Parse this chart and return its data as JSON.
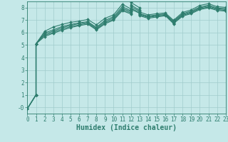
{
  "xlabel": "Humidex (Indice chaleur)",
  "bg_color": "#c5e8e8",
  "grid_color": "#a0cccc",
  "line_color": "#2e7d6e",
  "xlim": [
    0,
    23
  ],
  "ylim": [
    -0.5,
    8.5
  ],
  "yticks": [
    0,
    1,
    2,
    3,
    4,
    5,
    6,
    7,
    8
  ],
  "ytick_labels": [
    "-0",
    "1",
    "2",
    "3",
    "4",
    "5",
    "6",
    "7",
    "8"
  ],
  "xticks": [
    0,
    1,
    2,
    3,
    4,
    5,
    6,
    7,
    8,
    9,
    10,
    11,
    12,
    13,
    14,
    15,
    16,
    17,
    18,
    19,
    20,
    21,
    22,
    23
  ],
  "curves": [
    [
      [
        0,
        -0.1
      ],
      [
        1,
        1.0
      ],
      [
        1,
        5.1
      ],
      [
        2,
        6.1
      ],
      [
        3,
        6.45
      ],
      [
        4,
        6.65
      ],
      [
        5,
        6.82
      ],
      [
        6,
        6.92
      ],
      [
        7,
        7.05
      ],
      [
        8,
        6.62
      ],
      [
        9,
        7.15
      ],
      [
        10,
        7.42
      ],
      [
        11,
        8.28
      ],
      [
        12,
        7.9
      ],
      [
        12,
        8.42
      ],
      [
        13,
        8.0
      ],
      [
        13,
        7.65
      ],
      [
        14,
        7.42
      ],
      [
        15,
        7.52
      ],
      [
        16,
        7.58
      ],
      [
        17,
        6.95
      ],
      [
        17,
        7.02
      ],
      [
        18,
        7.62
      ],
      [
        19,
        7.82
      ],
      [
        20,
        8.18
      ],
      [
        21,
        8.32
      ],
      [
        22,
        8.08
      ],
      [
        23,
        8.02
      ]
    ],
    [
      [
        0,
        -0.1
      ],
      [
        1,
        1.0
      ],
      [
        1,
        5.1
      ],
      [
        2,
        5.98
      ],
      [
        3,
        6.22
      ],
      [
        4,
        6.48
      ],
      [
        5,
        6.65
      ],
      [
        6,
        6.78
      ],
      [
        7,
        6.88
      ],
      [
        8,
        6.42
      ],
      [
        9,
        6.98
      ],
      [
        10,
        7.28
      ],
      [
        11,
        8.08
      ],
      [
        12,
        7.75
      ],
      [
        12,
        8.22
      ],
      [
        13,
        7.8
      ],
      [
        13,
        7.52
      ],
      [
        14,
        7.32
      ],
      [
        15,
        7.42
      ],
      [
        16,
        7.5
      ],
      [
        17,
        6.88
      ],
      [
        17,
        6.95
      ],
      [
        18,
        7.52
      ],
      [
        19,
        7.72
      ],
      [
        20,
        8.05
      ],
      [
        21,
        8.2
      ],
      [
        22,
        7.98
      ],
      [
        23,
        7.92
      ]
    ],
    [
      [
        0,
        -0.1
      ],
      [
        1,
        1.0
      ],
      [
        1,
        5.1
      ],
      [
        2,
        5.88
      ],
      [
        3,
        6.12
      ],
      [
        4,
        6.38
      ],
      [
        5,
        6.58
      ],
      [
        6,
        6.72
      ],
      [
        7,
        6.82
      ],
      [
        8,
        6.35
      ],
      [
        9,
        6.88
      ],
      [
        10,
        7.18
      ],
      [
        11,
        7.95
      ],
      [
        12,
        7.68
      ],
      [
        12,
        8.08
      ],
      [
        13,
        7.72
      ],
      [
        13,
        7.48
      ],
      [
        14,
        7.28
      ],
      [
        15,
        7.38
      ],
      [
        16,
        7.45
      ],
      [
        17,
        6.82
      ],
      [
        17,
        6.88
      ],
      [
        18,
        7.45
      ],
      [
        19,
        7.65
      ],
      [
        20,
        7.98
      ],
      [
        21,
        8.12
      ],
      [
        22,
        7.92
      ],
      [
        23,
        7.85
      ]
    ],
    [
      [
        0,
        -0.1
      ],
      [
        1,
        1.0
      ],
      [
        1,
        5.1
      ],
      [
        2,
        5.78
      ],
      [
        3,
        6.02
      ],
      [
        4,
        6.28
      ],
      [
        5,
        6.48
      ],
      [
        6,
        6.62
      ],
      [
        7,
        6.75
      ],
      [
        8,
        6.28
      ],
      [
        9,
        6.78
      ],
      [
        10,
        7.08
      ],
      [
        11,
        7.85
      ],
      [
        12,
        7.58
      ],
      [
        12,
        7.95
      ],
      [
        13,
        7.62
      ],
      [
        13,
        7.42
      ],
      [
        14,
        7.22
      ],
      [
        15,
        7.32
      ],
      [
        16,
        7.4
      ],
      [
        17,
        6.75
      ],
      [
        17,
        6.82
      ],
      [
        18,
        7.38
      ],
      [
        19,
        7.58
      ],
      [
        20,
        7.92
      ],
      [
        21,
        8.05
      ],
      [
        22,
        7.85
      ],
      [
        23,
        7.78
      ]
    ],
    [
      [
        0,
        -0.1
      ],
      [
        1,
        1.0
      ],
      [
        1,
        5.1
      ],
      [
        2,
        5.68
      ],
      [
        3,
        5.95
      ],
      [
        4,
        6.18
      ],
      [
        5,
        6.4
      ],
      [
        6,
        6.55
      ],
      [
        7,
        6.68
      ],
      [
        8,
        6.22
      ],
      [
        9,
        6.7
      ],
      [
        10,
        7.0
      ],
      [
        11,
        7.75
      ],
      [
        12,
        7.5
      ],
      [
        12,
        7.88
      ],
      [
        13,
        7.55
      ],
      [
        13,
        7.35
      ],
      [
        14,
        7.15
      ],
      [
        15,
        7.25
      ],
      [
        16,
        7.35
      ],
      [
        17,
        6.68
      ],
      [
        17,
        6.75
      ],
      [
        18,
        7.32
      ],
      [
        19,
        7.52
      ],
      [
        20,
        7.85
      ],
      [
        21,
        7.98
      ],
      [
        22,
        7.78
      ],
      [
        23,
        7.72
      ]
    ]
  ],
  "marker": "D",
  "marker_size": 2.0,
  "linewidth": 0.8,
  "tick_fontsize": 5.5,
  "xlabel_fontsize": 7.0
}
